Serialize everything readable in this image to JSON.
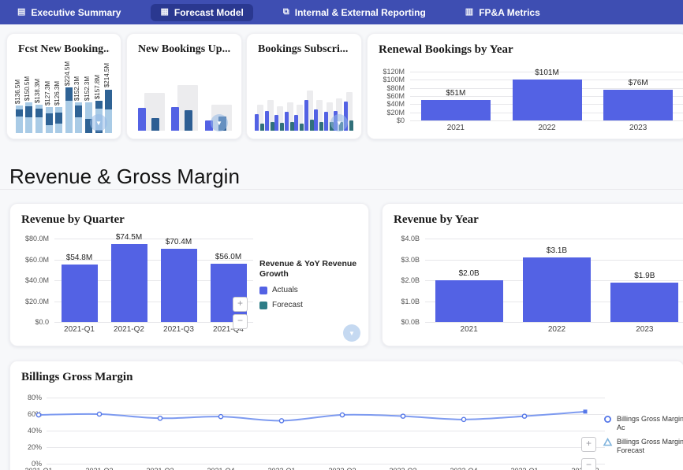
{
  "navbar": {
    "tabs": [
      {
        "label": "Executive Summary",
        "icon": "document-icon",
        "active": false
      },
      {
        "label": "Forecast Model",
        "icon": "forecast-chart-icon",
        "active": true
      },
      {
        "label": "Internal & External Reporting",
        "icon": "report-copy-icon",
        "active": false
      },
      {
        "label": "FP&A Metrics",
        "icon": "metrics-grid-icon",
        "active": false
      }
    ]
  },
  "section_title": "Revenue & Gross Margin",
  "colors": {
    "navbar_bg": "#3E4EB2",
    "navbar_active_bg": "#2A3890",
    "accent_bar": "#5362E4",
    "thumb_light": "#A9CBE6",
    "thumb_dark": "#2F6395",
    "thumb_navy": "#2D5E93",
    "thumb_teal": "#31707A",
    "thumb_bg_bar": "#ECECEE",
    "forecast_teal": "#2E7D87",
    "line_blue": "#7E9BF0",
    "marker_blue": "#5577E8",
    "forecast_marker_blue": "#7FB3DD"
  },
  "chart_data": [
    {
      "id": "fcst-new-bookings",
      "type": "bar",
      "variant": "stacked-thumbnail",
      "title": "Fcst New Booking...",
      "value_labels": [
        "$136.5M",
        "$150.5M",
        "$138.3M",
        "$127.3M",
        "$126.3M",
        "$224.5M",
        "$152.3M",
        "$152.3M",
        "$157.8M",
        "$214.5M"
      ],
      "values": [
        136.5,
        150.5,
        138.3,
        127.3,
        126.3,
        224.5,
        152.3,
        152.3,
        157.8,
        214.5
      ],
      "ymax": 224.5,
      "segments": [
        [
          {
            "c": "light",
            "f": 0.6
          },
          {
            "c": "dark",
            "f": 0.25
          },
          {
            "c": "light",
            "f": 0.15
          }
        ],
        [
          {
            "c": "light",
            "f": 0.52
          },
          {
            "c": "dark",
            "f": 0.36
          },
          {
            "c": "light",
            "f": 0.12
          }
        ],
        [
          {
            "c": "light",
            "f": 0.55
          },
          {
            "c": "dark",
            "f": 0.32
          },
          {
            "c": "light",
            "f": 0.13
          }
        ],
        [
          {
            "c": "light",
            "f": 0.3
          },
          {
            "c": "dark",
            "f": 0.45
          },
          {
            "c": "light",
            "f": 0.25
          }
        ],
        [
          {
            "c": "light",
            "f": 0.36
          },
          {
            "c": "dark",
            "f": 0.44
          },
          {
            "c": "light",
            "f": 0.2
          }
        ],
        [
          {
            "c": "light",
            "f": 0.7
          },
          {
            "c": "dark",
            "f": 0.3
          }
        ],
        [
          {
            "c": "light",
            "f": 0.52
          },
          {
            "c": "dark",
            "f": 0.36
          },
          {
            "c": "light",
            "f": 0.12
          }
        ],
        [
          {
            "c": "dark",
            "f": 0.45
          },
          {
            "c": "light",
            "f": 0.55
          }
        ],
        [
          {
            "c": "dark",
            "f": 0.1
          },
          {
            "c": "light",
            "f": 0.65
          },
          {
            "c": "dark",
            "f": 0.25
          }
        ],
        [
          {
            "c": "light",
            "f": 0.55
          },
          {
            "c": "dark",
            "f": 0.45
          }
        ]
      ]
    },
    {
      "id": "new-bookings-uplift",
      "type": "bar",
      "variant": "grouped-thumbnail",
      "title": "New Bookings Up...",
      "bar_colors": [
        "blue",
        "navy"
      ],
      "groups": [
        {
          "bg": 0.56,
          "bars": [
            0.34,
            0.19
          ]
        },
        {
          "bg": 0.68,
          "bars": [
            0.35,
            0.3
          ]
        },
        {
          "bg": 0.38,
          "bars": [
            0.15,
            0.21
          ]
        }
      ]
    },
    {
      "id": "bookings-subscription",
      "type": "bar",
      "variant": "grouped-thumbnail",
      "title": "Bookings Subscri...",
      "bar_colors": [
        "blue",
        "teal"
      ],
      "groups": [
        {
          "bg": 0.4,
          "bars": [
            0.26,
            0.11
          ]
        },
        {
          "bg": 0.48,
          "bars": [
            0.3,
            0.14
          ]
        },
        {
          "bg": 0.38,
          "bars": [
            0.25,
            0.12
          ]
        },
        {
          "bg": 0.44,
          "bars": [
            0.29,
            0.13
          ]
        },
        {
          "bg": 0.4,
          "bars": [
            0.25,
            0.11
          ]
        },
        {
          "bg": 0.62,
          "bars": [
            0.47,
            0.17
          ]
        },
        {
          "bg": 0.48,
          "bars": [
            0.33,
            0.14
          ]
        },
        {
          "bg": 0.44,
          "bars": [
            0.29,
            0.13
          ]
        },
        {
          "bg": 0.5,
          "bars": [
            0.31,
            0.14
          ]
        },
        {
          "bg": 0.6,
          "bars": [
            0.45,
            0.16
          ]
        }
      ]
    },
    {
      "id": "renewal-bookings-by-year",
      "type": "bar",
      "title": "Renewal Bookings by Year",
      "categories": [
        "2021",
        "2022",
        "2023"
      ],
      "values": [
        51,
        101,
        76
      ],
      "value_labels": [
        "$51M",
        "$101M",
        "$76M"
      ],
      "ylim": [
        0,
        120
      ],
      "yticks": [
        {
          "label": "$120M",
          "v": 120
        },
        {
          "label": "$100M",
          "v": 100
        },
        {
          "label": "$80M",
          "v": 80
        },
        {
          "label": "$60M",
          "v": 60
        },
        {
          "label": "$40M",
          "v": 40
        },
        {
          "label": "$20M",
          "v": 20
        },
        {
          "label": "$0",
          "v": 0
        }
      ]
    },
    {
      "id": "revenue-by-quarter",
      "type": "bar",
      "title": "Revenue by Quarter",
      "categories": [
        "2021-Q1",
        "2021-Q2",
        "2021-Q3",
        "2021-Q4"
      ],
      "values": [
        54.8,
        74.5,
        70.4,
        56.0
      ],
      "value_labels": [
        "$54.8M",
        "$74.5M",
        "$70.4M",
        "$56.0M"
      ],
      "ylim": [
        0,
        80
      ],
      "yticks": [
        {
          "label": "$80.0M",
          "v": 80
        },
        {
          "label": "$60.0M",
          "v": 60
        },
        {
          "label": "$40.0M",
          "v": 40
        },
        {
          "label": "$20.0M",
          "v": 20
        },
        {
          "label": "$0.0",
          "v": 0
        }
      ],
      "legend": {
        "title": "Revenue & YoY Revenue Growth",
        "items": [
          {
            "label": "Actuals",
            "swatch": "blue"
          },
          {
            "label": "Forecast",
            "swatch": "teal"
          }
        ]
      }
    },
    {
      "id": "revenue-by-year",
      "type": "bar",
      "title": "Revenue by Year",
      "categories": [
        "2021",
        "2022",
        "2023"
      ],
      "values": [
        2.0,
        3.1,
        1.9
      ],
      "value_labels": [
        "$2.0B",
        "$3.1B",
        "$1.9B"
      ],
      "ylim": [
        0,
        4
      ],
      "yticks": [
        {
          "label": "$4.0B",
          "v": 4
        },
        {
          "label": "$3.0B",
          "v": 3
        },
        {
          "label": "$2.0B",
          "v": 2
        },
        {
          "label": "$1.0B",
          "v": 1
        },
        {
          "label": "$0.0B",
          "v": 0
        }
      ]
    },
    {
      "id": "billings-gross-margin",
      "type": "line",
      "title": "Billings Gross Margin",
      "x": [
        "2021-Q1",
        "2021-Q2",
        "2021-Q3",
        "2021-Q4",
        "2022-Q1",
        "2022-Q2",
        "2022-Q3",
        "2022-Q4",
        "2023-Q1",
        "2023-Q2"
      ],
      "values": [
        59,
        60,
        55,
        57,
        52,
        59,
        57.5,
        53.5,
        57.5,
        63
      ],
      "ylim": [
        0,
        80
      ],
      "yticks": [
        {
          "label": "80%",
          "v": 80
        },
        {
          "label": "60%",
          "v": 60
        },
        {
          "label": "40%",
          "v": 40
        },
        {
          "label": "20%",
          "v": 20
        },
        {
          "label": "0%",
          "v": 0
        }
      ],
      "legend": {
        "items": [
          {
            "marker": "circle",
            "label": "Billings Gross Margin Ac"
          },
          {
            "marker": "triangle",
            "label": "Billings Gross Margin Forecast"
          }
        ]
      }
    }
  ]
}
